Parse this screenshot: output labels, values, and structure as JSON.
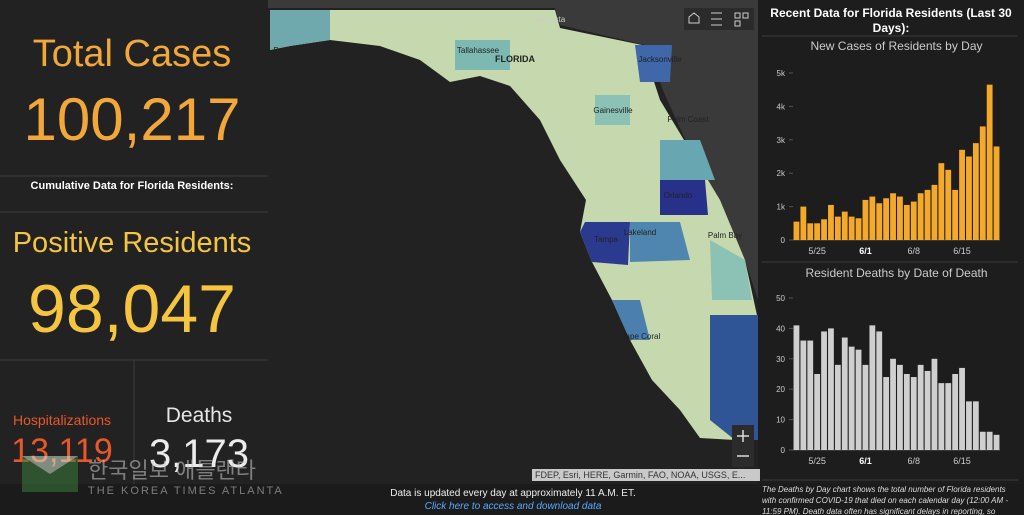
{
  "left": {
    "total_label": "Total Cases",
    "total_value": "100,217",
    "cumulative_heading": "Cumulative Data for Florida Residents:",
    "positive_label": "Positive Residents",
    "positive_value": "98,047",
    "hosp_label": "Hospitalizations",
    "hosp_value": "13,119",
    "deaths_label": "Deaths",
    "deaths_value": "3,173"
  },
  "watermark": {
    "korean": "한국일보 애틀랜타",
    "english": "THE KOREA TIMES ATLANTA"
  },
  "map": {
    "places": [
      "Valdosta",
      "Pensacola",
      "Tallahassee",
      "FLORIDA",
      "Jacksonville",
      "Gainesville",
      "Palm Coast",
      "Orlando",
      "Tampa",
      "Lakeland",
      "Palm Bay",
      "Cape Coral"
    ],
    "attribution": "FDEP, Esri, HERE, Garmin, FAO, NOAA, USGS, E...",
    "update_note": "Data is updated every day at approximately 11 A.M. ET.",
    "download_link": "Click here to access and download data"
  },
  "right": {
    "heading": "Recent Data for Florida Residents (Last 30 Days):",
    "note": "The Deaths by Day chart shows the total number of Florida residents with confirmed COVID-19 that died on each calendar day (12:00 AM - 11:59 PM). Death data often has significant delays in reporting, so"
  },
  "chart_data": [
    {
      "type": "bar",
      "title": "New Cases of Residents by Day",
      "categories": [
        null,
        null,
        null,
        "5/25",
        null,
        null,
        null,
        null,
        null,
        null,
        "6/1",
        null,
        null,
        null,
        null,
        null,
        null,
        "6/8",
        null,
        null,
        null,
        null,
        null,
        null,
        "6/15",
        null,
        null,
        null,
        null,
        null
      ],
      "values": [
        550,
        1000,
        500,
        500,
        620,
        1050,
        700,
        850,
        700,
        650,
        1200,
        1300,
        1100,
        1250,
        1400,
        1300,
        1050,
        1150,
        1400,
        1500,
        1650,
        2300,
        2100,
        1500,
        2700,
        2500,
        2900,
        3400,
        4650,
        2800
      ],
      "color": "#f5a92a",
      "ylim": [
        0,
        5000
      ],
      "yticks": [
        0,
        {
          "value": 1000,
          "label": "1k"
        },
        {
          "value": 2000,
          "label": "2k"
        },
        {
          "value": 3000,
          "label": "3k"
        },
        {
          "value": 4000,
          "label": "4k"
        },
        {
          "value": 5000,
          "label": "5k"
        }
      ],
      "grid": false
    },
    {
      "type": "bar",
      "title": "Resident Deaths by Date of Death",
      "categories": [
        null,
        null,
        null,
        "5/25",
        null,
        null,
        null,
        null,
        null,
        null,
        "6/1",
        null,
        null,
        null,
        null,
        null,
        null,
        "6/8",
        null,
        null,
        null,
        null,
        null,
        null,
        "6/15",
        null,
        null,
        null,
        null,
        null
      ],
      "values": [
        41,
        36,
        36,
        25,
        39,
        40,
        28,
        37,
        34,
        33,
        28,
        41,
        39,
        24,
        30,
        28,
        25,
        24,
        28,
        26,
        30,
        22,
        22,
        25,
        27,
        16,
        16,
        6,
        6,
        5
      ],
      "color": "#cfcfcf",
      "ylim": [
        0,
        50
      ],
      "yticks": [
        0,
        10,
        20,
        30,
        40,
        50
      ],
      "grid": false
    }
  ]
}
